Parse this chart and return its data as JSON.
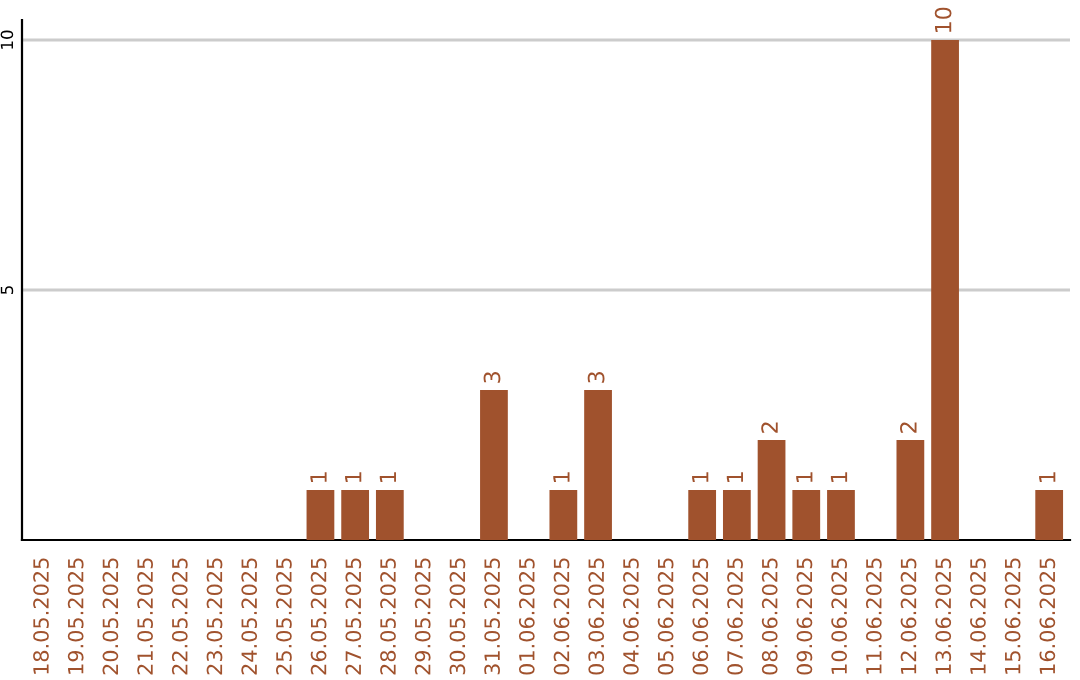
{
  "chart_data": {
    "type": "bar",
    "categories": [
      "18.05.2025",
      "19.05.2025",
      "20.05.2025",
      "21.05.2025",
      "22.05.2025",
      "23.05.2025",
      "24.05.2025",
      "25.05.2025",
      "26.05.2025",
      "27.05.2025",
      "28.05.2025",
      "29.05.2025",
      "30.05.2025",
      "31.05.2025",
      "01.06.2025",
      "02.06.2025",
      "03.06.2025",
      "04.06.2025",
      "05.06.2025",
      "06.06.2025",
      "07.06.2025",
      "08.06.2025",
      "09.06.2025",
      "10.06.2025",
      "11.06.2025",
      "12.06.2025",
      "13.06.2025",
      "14.06.2025",
      "15.06.2025",
      "16.06.2025"
    ],
    "values": [
      0,
      0,
      0,
      0,
      0,
      0,
      0,
      0,
      1,
      1,
      1,
      0,
      0,
      3,
      0,
      1,
      3,
      0,
      0,
      1,
      1,
      2,
      1,
      1,
      0,
      2,
      10,
      0,
      0,
      1
    ],
    "value_labels": [
      null,
      null,
      null,
      null,
      null,
      null,
      null,
      null,
      "1",
      "1",
      "1",
      null,
      null,
      "3",
      null,
      "1",
      "3",
      null,
      null,
      "1",
      "1",
      "2",
      "1",
      "1",
      null,
      "2",
      "10",
      null,
      null,
      "1"
    ],
    "color": "#a0522d",
    "ylim": [
      0,
      10.4
    ],
    "yticks": [
      5,
      10
    ],
    "grid": "y"
  }
}
